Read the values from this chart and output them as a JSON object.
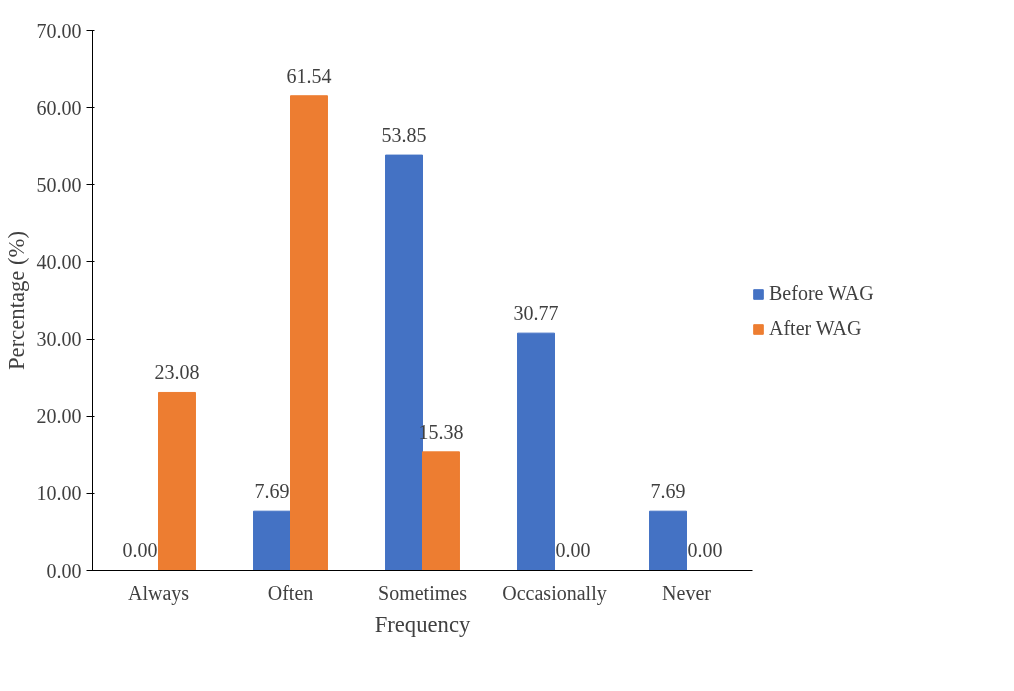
{
  "chart_data": {
    "type": "bar",
    "xlabel": "Frequency",
    "ylabel": "Percentage (%)",
    "categories": [
      "Always",
      "Often",
      "Sometimes",
      "Occasionally",
      "Never"
    ],
    "series": [
      {
        "name": "Before WAG",
        "color": "#4472c4",
        "values": [
          0.0,
          7.69,
          53.85,
          30.77,
          7.69
        ],
        "value_labels": [
          "0.00",
          "7.69",
          "53.85",
          "30.77",
          "7.69"
        ]
      },
      {
        "name": "After WAG",
        "color": "#ed7d31",
        "values": [
          23.08,
          61.54,
          15.38,
          0.0,
          0.0
        ],
        "value_labels": [
          "23.08",
          "61.54",
          "15.38",
          "0.00",
          "0.00"
        ]
      }
    ],
    "ylim": [
      0,
      70
    ],
    "yticks": [
      {
        "value": 0,
        "label": "0.00"
      },
      {
        "value": 10,
        "label": "10.00"
      },
      {
        "value": 20,
        "label": "20.00"
      },
      {
        "value": 30,
        "label": "30.00"
      },
      {
        "value": 40,
        "label": "40.00"
      },
      {
        "value": 50,
        "label": "50.00"
      },
      {
        "value": 60,
        "label": "60.00"
      },
      {
        "value": 70,
        "label": "70.00"
      }
    ],
    "grid": false,
    "legend": "right"
  }
}
